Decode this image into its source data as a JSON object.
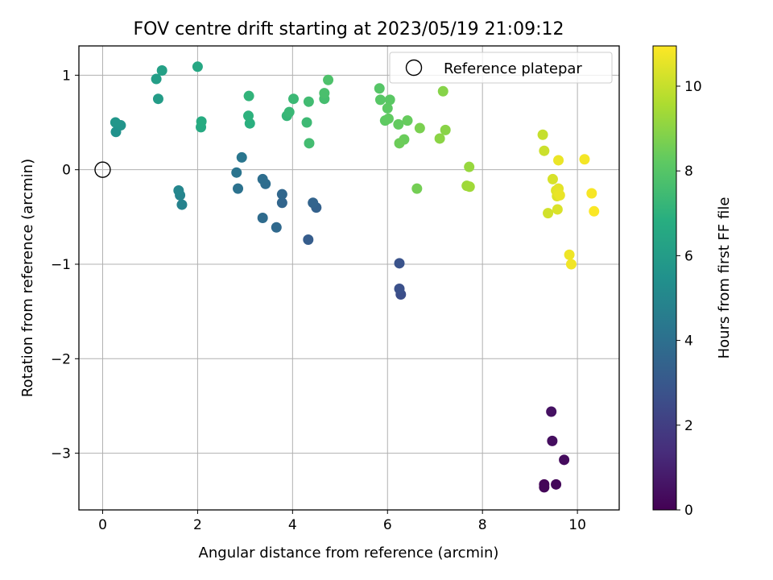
{
  "chart_data": {
    "type": "scatter",
    "title": "FOV centre drift starting at 2023/05/19 21:09:12",
    "xlabel": "Angular distance from reference (arcmin)",
    "ylabel": "Rotation from reference (arcmin)",
    "xlim": [
      -0.5,
      10.88
    ],
    "ylim": [
      -3.6,
      1.31
    ],
    "xticks": [
      0,
      2,
      4,
      6,
      8,
      10
    ],
    "yticks": [
      1,
      0,
      -1,
      -2,
      -3
    ],
    "xtick_labels": [
      "0",
      "2",
      "4",
      "6",
      "8",
      "10"
    ],
    "ytick_labels": [
      "1",
      "0",
      "−1",
      "−2",
      "−3"
    ],
    "grid": true,
    "legend": {
      "placement": "top-right",
      "entries": [
        "Reference platepar"
      ]
    },
    "reference_point": {
      "x": 0,
      "y": 0,
      "marker": "open-circle"
    },
    "colorbar": {
      "label": "Hours from first FF file",
      "range": [
        0,
        10.95
      ],
      "ticks": [
        0,
        2,
        4,
        6,
        8,
        10
      ],
      "tick_labels": [
        "0",
        "2",
        "4",
        "6",
        "8",
        "10"
      ],
      "colormap": "viridis"
    },
    "points": [
      {
        "x": 9.3,
        "y": -3.33,
        "h": 0.1
      },
      {
        "x": 9.3,
        "y": -3.36,
        "h": 0.15
      },
      {
        "x": 9.55,
        "y": -3.33,
        "h": 0.2
      },
      {
        "x": 9.72,
        "y": -3.07,
        "h": 0.3
      },
      {
        "x": 9.47,
        "y": -2.87,
        "h": 0.4
      },
      {
        "x": 9.45,
        "y": -2.56,
        "h": 0.5
      },
      {
        "x": 6.28,
        "y": -1.32,
        "h": 2.6
      },
      {
        "x": 6.25,
        "y": -1.26,
        "h": 2.7
      },
      {
        "x": 6.25,
        "y": -0.99,
        "h": 2.8
      },
      {
        "x": 4.33,
        "y": -0.74,
        "h": 3.2
      },
      {
        "x": 4.5,
        "y": -0.4,
        "h": 3.4
      },
      {
        "x": 4.43,
        "y": -0.35,
        "h": 3.5
      },
      {
        "x": 3.78,
        "y": -0.35,
        "h": 3.6
      },
      {
        "x": 3.78,
        "y": -0.26,
        "h": 3.65
      },
      {
        "x": 3.66,
        "y": -0.61,
        "h": 3.7
      },
      {
        "x": 3.37,
        "y": -0.51,
        "h": 3.8
      },
      {
        "x": 3.43,
        "y": -0.15,
        "h": 3.9
      },
      {
        "x": 3.37,
        "y": -0.1,
        "h": 3.95
      },
      {
        "x": 2.85,
        "y": -0.2,
        "h": 4.1
      },
      {
        "x": 2.82,
        "y": -0.03,
        "h": 4.2
      },
      {
        "x": 2.93,
        "y": 0.13,
        "h": 4.3
      },
      {
        "x": 1.67,
        "y": -0.37,
        "h": 4.8
      },
      {
        "x": 1.63,
        "y": -0.27,
        "h": 4.9
      },
      {
        "x": 1.6,
        "y": -0.22,
        "h": 5.0
      },
      {
        "x": 0.28,
        "y": 0.4,
        "h": 5.5
      },
      {
        "x": 0.38,
        "y": 0.47,
        "h": 5.6
      },
      {
        "x": 0.27,
        "y": 0.5,
        "h": 5.7
      },
      {
        "x": 1.17,
        "y": 0.75,
        "h": 6.0
      },
      {
        "x": 1.13,
        "y": 0.96,
        "h": 6.1
      },
      {
        "x": 1.25,
        "y": 1.05,
        "h": 6.2
      },
      {
        "x": 2.0,
        "y": 1.09,
        "h": 6.5
      },
      {
        "x": 2.07,
        "y": 0.45,
        "h": 6.6
      },
      {
        "x": 2.08,
        "y": 0.51,
        "h": 6.7
      },
      {
        "x": 3.1,
        "y": 0.49,
        "h": 6.9
      },
      {
        "x": 3.07,
        "y": 0.57,
        "h": 7.0
      },
      {
        "x": 3.08,
        "y": 0.78,
        "h": 7.1
      },
      {
        "x": 3.88,
        "y": 0.57,
        "h": 7.2
      },
      {
        "x": 3.93,
        "y": 0.61,
        "h": 7.3
      },
      {
        "x": 4.02,
        "y": 0.75,
        "h": 7.35
      },
      {
        "x": 4.3,
        "y": 0.5,
        "h": 7.4
      },
      {
        "x": 4.34,
        "y": 0.72,
        "h": 7.5
      },
      {
        "x": 4.35,
        "y": 0.28,
        "h": 7.55
      },
      {
        "x": 4.67,
        "y": 0.75,
        "h": 7.6
      },
      {
        "x": 4.67,
        "y": 0.81,
        "h": 7.7
      },
      {
        "x": 4.75,
        "y": 0.95,
        "h": 7.8
      },
      {
        "x": 5.83,
        "y": 0.86,
        "h": 8.0
      },
      {
        "x": 5.85,
        "y": 0.74,
        "h": 8.05
      },
      {
        "x": 6.05,
        "y": 0.74,
        "h": 8.1
      },
      {
        "x": 6.0,
        "y": 0.65,
        "h": 8.15
      },
      {
        "x": 5.95,
        "y": 0.52,
        "h": 8.2
      },
      {
        "x": 6.02,
        "y": 0.54,
        "h": 8.25
      },
      {
        "x": 6.23,
        "y": 0.48,
        "h": 8.3
      },
      {
        "x": 6.42,
        "y": 0.52,
        "h": 8.35
      },
      {
        "x": 6.35,
        "y": 0.32,
        "h": 8.4
      },
      {
        "x": 6.25,
        "y": 0.28,
        "h": 8.45
      },
      {
        "x": 6.62,
        "y": -0.2,
        "h": 8.6
      },
      {
        "x": 6.68,
        "y": 0.44,
        "h": 8.7
      },
      {
        "x": 7.17,
        "y": 0.83,
        "h": 8.9
      },
      {
        "x": 7.22,
        "y": 0.42,
        "h": 8.95
      },
      {
        "x": 7.1,
        "y": 0.33,
        "h": 9.0
      },
      {
        "x": 7.72,
        "y": 0.03,
        "h": 9.2
      },
      {
        "x": 7.67,
        "y": -0.17,
        "h": 9.3
      },
      {
        "x": 7.73,
        "y": -0.18,
        "h": 9.35
      },
      {
        "x": 9.27,
        "y": 0.37,
        "h": 10.0
      },
      {
        "x": 9.3,
        "y": 0.2,
        "h": 10.1
      },
      {
        "x": 9.38,
        "y": -0.46,
        "h": 10.2
      },
      {
        "x": 9.48,
        "y": -0.1,
        "h": 10.3
      },
      {
        "x": 9.58,
        "y": -0.42,
        "h": 10.35
      },
      {
        "x": 9.57,
        "y": -0.28,
        "h": 10.4
      },
      {
        "x": 9.55,
        "y": -0.22,
        "h": 10.45
      },
      {
        "x": 9.6,
        "y": -0.2,
        "h": 10.5
      },
      {
        "x": 9.6,
        "y": -0.25,
        "h": 10.55
      },
      {
        "x": 9.63,
        "y": -0.27,
        "h": 10.6
      },
      {
        "x": 9.6,
        "y": 0.1,
        "h": 10.65
      },
      {
        "x": 9.83,
        "y": -0.9,
        "h": 10.7
      },
      {
        "x": 9.87,
        "y": -1.0,
        "h": 10.75
      },
      {
        "x": 10.15,
        "y": 0.11,
        "h": 10.8
      },
      {
        "x": 10.3,
        "y": -0.25,
        "h": 10.85
      },
      {
        "x": 10.35,
        "y": -0.44,
        "h": 10.9
      }
    ]
  }
}
